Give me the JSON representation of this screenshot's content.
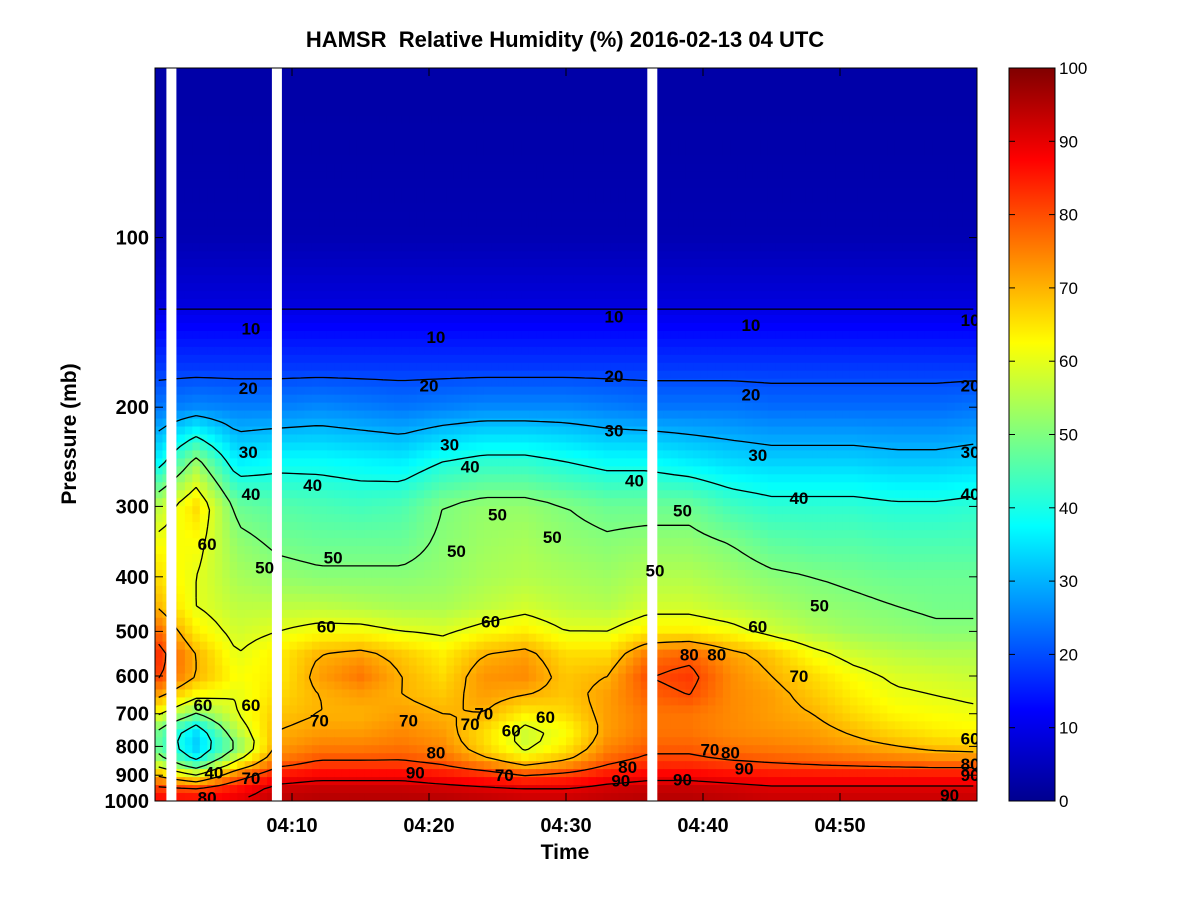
{
  "chart_data": {
    "type": "heatmap",
    "title": "HAMSR  Relative Humidity (%) 2016-02-13 04 UTC",
    "xlabel": "Time",
    "ylabel": "Pressure (mb)",
    "x_tick_labels": [
      "04:10",
      "04:20",
      "04:30",
      "04:40",
      "04:50"
    ],
    "x_tick_minutes": [
      10,
      20,
      30,
      40,
      50
    ],
    "xlim_minutes": [
      0,
      60
    ],
    "y_scale": "log",
    "y_reversed": true,
    "ylim_mb": [
      50,
      1000
    ],
    "y_tick_labels": [
      "100",
      "200",
      "300",
      "400",
      "500",
      "600",
      "700",
      "800",
      "900",
      "1000"
    ],
    "y_tick_values": [
      100,
      200,
      300,
      400,
      500,
      600,
      700,
      800,
      900,
      1000
    ],
    "colorbar": {
      "colormap": "jet",
      "range": [
        0,
        100
      ],
      "tick_labels": [
        "0",
        "10",
        "20",
        "30",
        "40",
        "50",
        "60",
        "70",
        "80",
        "90",
        "100"
      ],
      "tick_values": [
        0,
        10,
        20,
        30,
        40,
        50,
        60,
        70,
        80,
        90,
        100
      ]
    },
    "contour_levels": [
      10,
      20,
      30,
      40,
      50,
      60,
      70,
      80,
      90
    ],
    "contour_line_color": "#000000",
    "data_gap_minutes": [
      1.2,
      8.9,
      36.3
    ],
    "time_minutes": [
      0,
      3,
      6,
      9,
      12,
      15,
      18,
      21,
      24,
      27,
      30,
      33,
      36,
      39,
      42,
      45,
      48,
      51,
      54,
      57,
      60
    ],
    "pressure_mb": [
      60,
      100,
      130,
      170,
      200,
      250,
      300,
      350,
      400,
      450,
      500,
      550,
      600,
      650,
      700,
      750,
      800,
      850,
      900,
      950,
      1000
    ],
    "contour_label_text": [
      {
        "text": "10",
        "t": 7,
        "p": 145
      },
      {
        "text": "10",
        "t": 20.5,
        "p": 150
      },
      {
        "text": "10",
        "t": 33.5,
        "p": 138
      },
      {
        "text": "10",
        "t": 43.5,
        "p": 143
      },
      {
        "text": "10",
        "t": 59.5,
        "p": 140
      },
      {
        "text": "20",
        "t": 6.8,
        "p": 185
      },
      {
        "text": "20",
        "t": 20,
        "p": 183
      },
      {
        "text": "20",
        "t": 33.5,
        "p": 176
      },
      {
        "text": "20",
        "t": 43.5,
        "p": 190
      },
      {
        "text": "20",
        "t": 59.5,
        "p": 183
      },
      {
        "text": "30",
        "t": 6.8,
        "p": 240
      },
      {
        "text": "30",
        "t": 21.5,
        "p": 233
      },
      {
        "text": "30",
        "t": 33.5,
        "p": 220
      },
      {
        "text": "30",
        "t": 44,
        "p": 243
      },
      {
        "text": "30",
        "t": 59.5,
        "p": 240
      },
      {
        "text": "40",
        "t": 7,
        "p": 285
      },
      {
        "text": "40",
        "t": 11.5,
        "p": 275
      },
      {
        "text": "40",
        "t": 23,
        "p": 255
      },
      {
        "text": "40",
        "t": 35,
        "p": 270
      },
      {
        "text": "40",
        "t": 47,
        "p": 290
      },
      {
        "text": "40",
        "t": 59.5,
        "p": 285
      },
      {
        "text": "60",
        "t": 3.8,
        "p": 350
      },
      {
        "text": "50",
        "t": 8,
        "p": 385
      },
      {
        "text": "50",
        "t": 13,
        "p": 370
      },
      {
        "text": "50",
        "t": 22,
        "p": 360
      },
      {
        "text": "50",
        "t": 25,
        "p": 310
      },
      {
        "text": "50",
        "t": 29,
        "p": 340
      },
      {
        "text": "50",
        "t": 36.5,
        "p": 390
      },
      {
        "text": "50",
        "t": 38.5,
        "p": 305
      },
      {
        "text": "50",
        "t": 48.5,
        "p": 450
      },
      {
        "text": "60",
        "t": 12.5,
        "p": 490
      },
      {
        "text": "60",
        "t": 24.5,
        "p": 480
      },
      {
        "text": "60",
        "t": 44,
        "p": 490
      },
      {
        "text": "60",
        "t": 3.5,
        "p": 675
      },
      {
        "text": "60",
        "t": 7,
        "p": 675
      },
      {
        "text": "60",
        "t": 26,
        "p": 750
      },
      {
        "text": "60",
        "t": 28.5,
        "p": 710
      },
      {
        "text": "60",
        "t": 59.5,
        "p": 775
      },
      {
        "text": "70",
        "t": 12,
        "p": 720
      },
      {
        "text": "70",
        "t": 18.5,
        "p": 720
      },
      {
        "text": "70",
        "t": 24,
        "p": 700
      },
      {
        "text": "70",
        "t": 23,
        "p": 730
      },
      {
        "text": "70",
        "t": 25.5,
        "p": 900
      },
      {
        "text": "70",
        "t": 7,
        "p": 910
      },
      {
        "text": "70",
        "t": 47,
        "p": 600
      },
      {
        "text": "70",
        "t": 40.5,
        "p": 810
      },
      {
        "text": "40",
        "t": 4.3,
        "p": 890
      },
      {
        "text": "80",
        "t": 39,
        "p": 550
      },
      {
        "text": "80",
        "t": 41,
        "p": 550
      },
      {
        "text": "80",
        "t": 20.5,
        "p": 820
      },
      {
        "text": "80",
        "t": 34.5,
        "p": 870
      },
      {
        "text": "80",
        "t": 42,
        "p": 820
      },
      {
        "text": "80",
        "t": 59.5,
        "p": 860
      },
      {
        "text": "80",
        "t": 3.8,
        "p": 985
      },
      {
        "text": "90",
        "t": 19,
        "p": 890
      },
      {
        "text": "90",
        "t": 34,
        "p": 920
      },
      {
        "text": "90",
        "t": 38.5,
        "p": 915
      },
      {
        "text": "90",
        "t": 43,
        "p": 875
      },
      {
        "text": "90",
        "t": 59.5,
        "p": 900
      },
      {
        "text": "90",
        "t": 58,
        "p": 975
      }
    ],
    "rh_grid_percent": [
      [
        4,
        4,
        4,
        4,
        4,
        4,
        4,
        4,
        4,
        4,
        4,
        4,
        4,
        4,
        4,
        4,
        4,
        4,
        4,
        4,
        4
      ],
      [
        5,
        5,
        5,
        5,
        5,
        5,
        5,
        5,
        5,
        5,
        5,
        5,
        5,
        5,
        5,
        5,
        5,
        5,
        5,
        5,
        5
      ],
      [
        9,
        9,
        9,
        9,
        9,
        9,
        9,
        9,
        9,
        9,
        9,
        9,
        9,
        9,
        9,
        9,
        9,
        9,
        9,
        9,
        9
      ],
      [
        18,
        18,
        18,
        18,
        18,
        18,
        18,
        18,
        18,
        18,
        18,
        18,
        18,
        18,
        18,
        18,
        18,
        18,
        18,
        18,
        18
      ],
      [
        24,
        26,
        25,
        25,
        26,
        25,
        24,
        25,
        26,
        26,
        26,
        25,
        24,
        24,
        24,
        23,
        23,
        23,
        23,
        23,
        24
      ],
      [
        36,
        52,
        36,
        38,
        38,
        37,
        36,
        40,
        42,
        42,
        40,
        38,
        38,
        36,
        34,
        33,
        33,
        33,
        32,
        32,
        33
      ],
      [
        55,
        66,
        48,
        46,
        45,
        44,
        45,
        50,
        52,
        52,
        50,
        48,
        48,
        48,
        44,
        42,
        42,
        42,
        41,
        41,
        42
      ],
      [
        62,
        62,
        52,
        49,
        48,
        48,
        48,
        51,
        53,
        54,
        52,
        51,
        52,
        52,
        50,
        47,
        46,
        46,
        45,
        45,
        45
      ],
      [
        66,
        60,
        54,
        52,
        51,
        51,
        51,
        52,
        54,
        55,
        54,
        53,
        55,
        55,
        53,
        51,
        50,
        49,
        48,
        48,
        48
      ],
      [
        70,
        60,
        56,
        56,
        56,
        55,
        54,
        54,
        56,
        58,
        56,
        55,
        58,
        58,
        56,
        54,
        52,
        51,
        50,
        49,
        49
      ],
      [
        78,
        64,
        58,
        60,
        62,
        62,
        60,
        59,
        62,
        64,
        60,
        60,
        64,
        64,
        62,
        58,
        55,
        53,
        52,
        51,
        51
      ],
      [
        84,
        70,
        60,
        64,
        70,
        72,
        68,
        64,
        70,
        72,
        66,
        66,
        76,
        78,
        72,
        68,
        62,
        58,
        56,
        55,
        55
      ],
      [
        82,
        70,
        62,
        64,
        72,
        76,
        70,
        66,
        73,
        74,
        68,
        70,
        80,
        82,
        74,
        70,
        66,
        62,
        59,
        58,
        57
      ],
      [
        72,
        62,
        60,
        66,
        70,
        72,
        70,
        68,
        72,
        70,
        68,
        72,
        78,
        80,
        74,
        72,
        68,
        64,
        61,
        60,
        59
      ],
      [
        62,
        50,
        60,
        68,
        70,
        70,
        72,
        70,
        70,
        64,
        66,
        72,
        76,
        76,
        74,
        72,
        70,
        66,
        63,
        62,
        61
      ],
      [
        50,
        35,
        56,
        70,
        72,
        72,
        74,
        72,
        66,
        58,
        62,
        72,
        76,
        76,
        74,
        73,
        72,
        69,
        66,
        64,
        63
      ],
      [
        48,
        32,
        50,
        72,
        75,
        75,
        76,
        74,
        66,
        58,
        64,
        74,
        78,
        78,
        76,
        75,
        74,
        72,
        70,
        68,
        67
      ],
      [
        55,
        40,
        60,
        76,
        80,
        80,
        80,
        78,
        72,
        66,
        70,
        78,
        82,
        82,
        80,
        79,
        78,
        77,
        76,
        75,
        75
      ],
      [
        70,
        60,
        76,
        86,
        88,
        88,
        88,
        86,
        84,
        80,
        82,
        86,
        88,
        88,
        87,
        86,
        86,
        86,
        86,
        86,
        86
      ],
      [
        82,
        80,
        86,
        92,
        93,
        93,
        93,
        92,
        91,
        90,
        90,
        92,
        93,
        93,
        92,
        91,
        91,
        91,
        91,
        91,
        91
      ],
      [
        88,
        88,
        90,
        94,
        95,
        95,
        95,
        95,
        94,
        93,
        93,
        94,
        95,
        95,
        94,
        93,
        93,
        93,
        93,
        93,
        93
      ]
    ]
  }
}
